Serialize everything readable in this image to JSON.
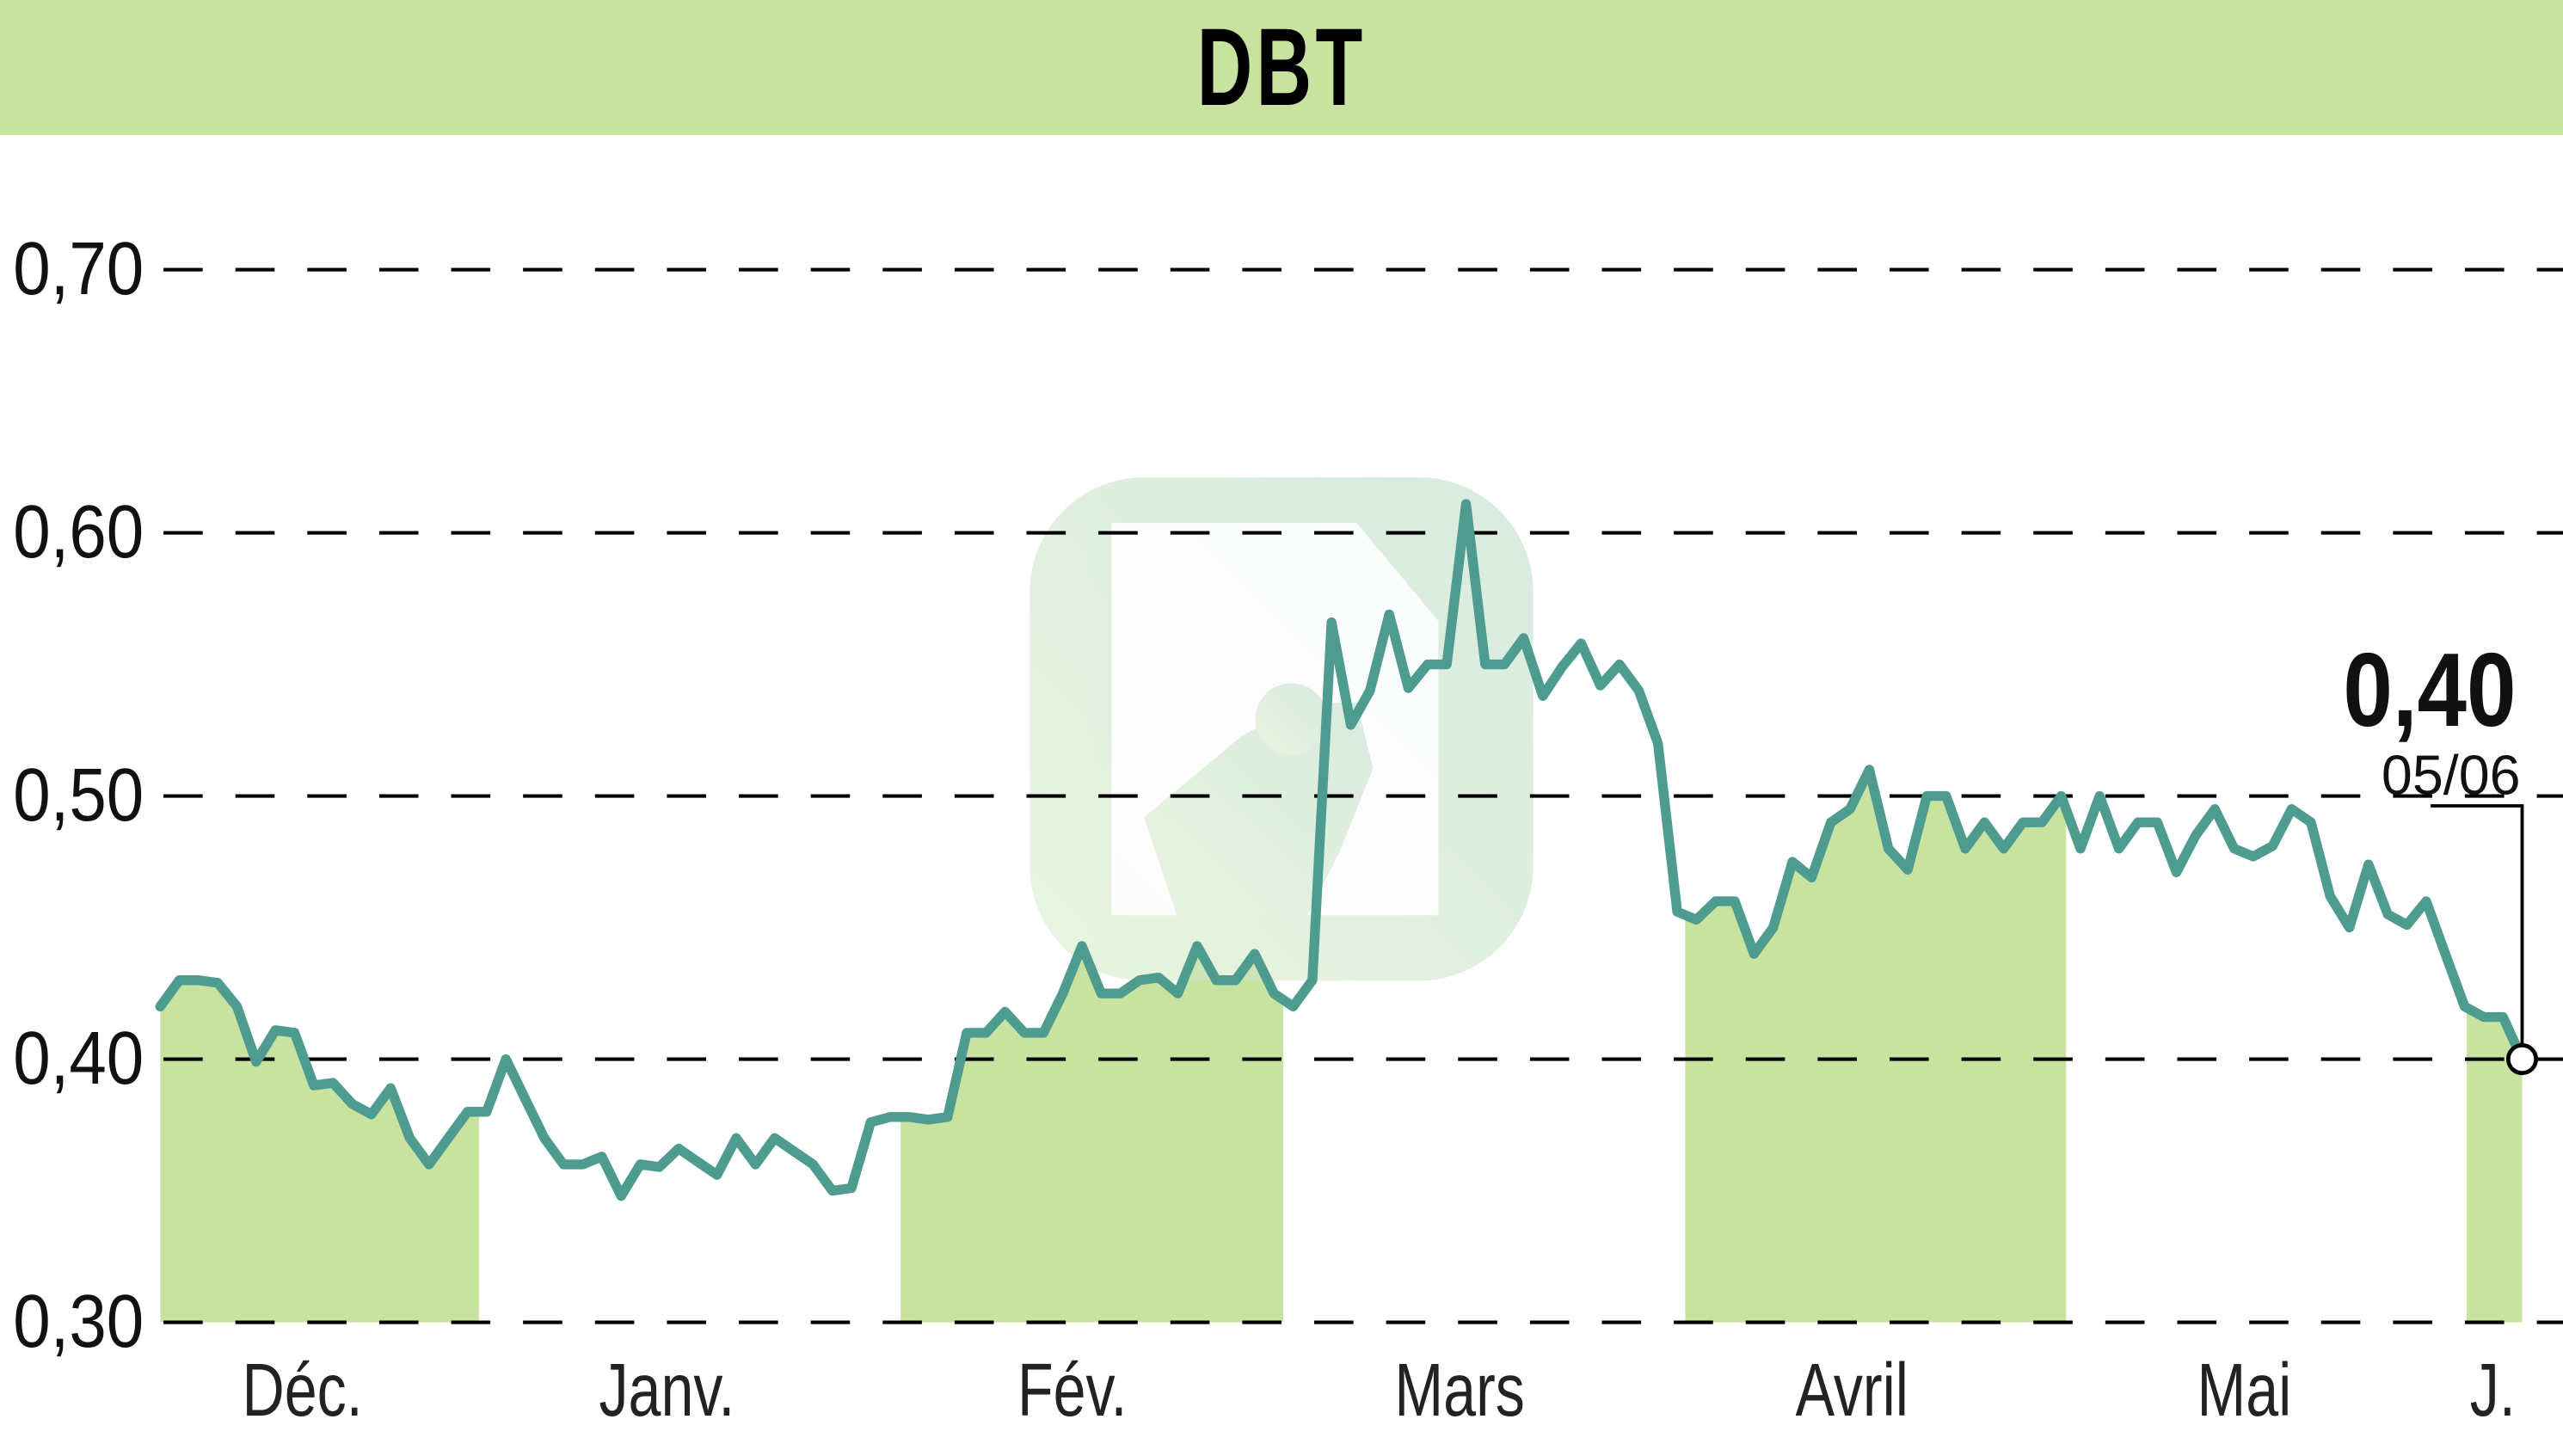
{
  "header": {
    "title": "DBT"
  },
  "colors": {
    "header_bg": "#c8e2a0",
    "month_band": "#c8e2a0",
    "line": "#4e9c90",
    "grid": "#000000",
    "watermark": "#cfe6d0"
  },
  "last_point": {
    "value_label": "0,40",
    "date_label": "05/06"
  },
  "chart_data": {
    "type": "line",
    "title": "DBT",
    "xlabel": "",
    "ylabel": "",
    "ylim": [
      0.3,
      0.7
    ],
    "yticks": [
      "0,70",
      "0,60",
      "0,50",
      "0,40",
      "0,30"
    ],
    "grid": true,
    "legend": null,
    "months": [
      "Déc.",
      "Janv.",
      "Fév.",
      "Mars",
      "Avril",
      "Mai",
      "J."
    ],
    "shaded_months": [
      "Déc.",
      "Fév.",
      "Avril",
      "J."
    ],
    "annotation": {
      "value": "0,40",
      "date": "05/06"
    },
    "series": [
      {
        "name": "DBT",
        "values": [
          0.42,
          0.43,
          0.43,
          0.429,
          0.42,
          0.399,
          0.411,
          0.41,
          0.39,
          0.391,
          0.383,
          0.379,
          0.389,
          0.37,
          0.36,
          0.37,
          0.38,
          0.38,
          0.4,
          0.385,
          0.37,
          0.36,
          0.36,
          0.363,
          0.348,
          0.36,
          0.359,
          0.366,
          0.361,
          0.356,
          0.37,
          0.36,
          0.37,
          0.365,
          0.36,
          0.35,
          0.351,
          0.376,
          0.378,
          0.378,
          0.377,
          0.378,
          0.41,
          0.41,
          0.418,
          0.41,
          0.41,
          0.425,
          0.443,
          0.425,
          0.425,
          0.43,
          0.431,
          0.425,
          0.443,
          0.43,
          0.43,
          0.44,
          0.425,
          0.42,
          0.43,
          0.566,
          0.527,
          0.54,
          0.569,
          0.541,
          0.55,
          0.55,
          0.611,
          0.55,
          0.55,
          0.56,
          0.538,
          0.549,
          0.558,
          0.542,
          0.55,
          0.54,
          0.52,
          0.456,
          0.453,
          0.46,
          0.46,
          0.44,
          0.45,
          0.475,
          0.469,
          0.49,
          0.495,
          0.51,
          0.48,
          0.472,
          0.5,
          0.5,
          0.48,
          0.49,
          0.48,
          0.49,
          0.49,
          0.5,
          0.48,
          0.5,
          0.48,
          0.49,
          0.49,
          0.471,
          0.485,
          0.495,
          0.48,
          0.477,
          0.481,
          0.495,
          0.49,
          0.462,
          0.45,
          0.474,
          0.455,
          0.451,
          0.46,
          0.44,
          0.42,
          0.416,
          0.416,
          0.4
        ]
      }
    ]
  }
}
